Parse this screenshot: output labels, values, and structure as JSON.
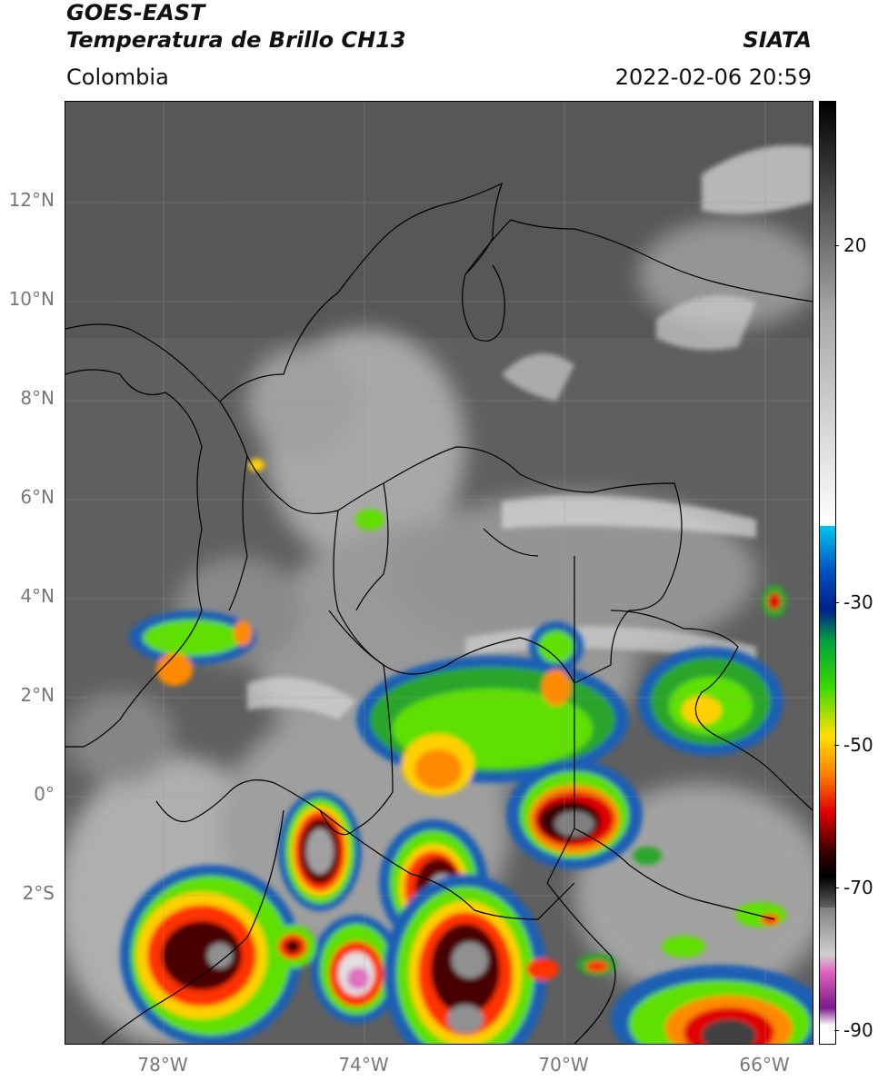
{
  "header": {
    "line1": "GOES-EAST",
    "line2": "Temperatura de Brillo CH13",
    "region": "Colombia",
    "agency": "SIATA",
    "datetime": "2022-02-06 20:59"
  },
  "map": {
    "lat_ticks": [
      "12°N",
      "10°N",
      "8°N",
      "6°N",
      "4°N",
      "2°N",
      "0°",
      "2°S"
    ],
    "lon_ticks": [
      "78°W",
      "74°W",
      "70°W",
      "66°W"
    ],
    "gridlines": true
  },
  "colorbar": {
    "ticks": [
      "20",
      "-30",
      "-50",
      "-70",
      "-90"
    ],
    "stops": [
      {
        "color": "#000000",
        "label": ""
      },
      {
        "color": "#c8c8c8",
        "label": ""
      },
      {
        "color": "#ffffff",
        "label": ""
      },
      {
        "color": "#00c8f0",
        "label": ""
      },
      {
        "color": "#0050c0",
        "label": ""
      },
      {
        "color": "#00a040",
        "label": ""
      },
      {
        "color": "#38d800",
        "label": ""
      },
      {
        "color": "#ffe000",
        "label": ""
      },
      {
        "color": "#ff8000",
        "label": ""
      },
      {
        "color": "#e00000",
        "label": ""
      },
      {
        "color": "#300000",
        "label": ""
      },
      {
        "color": "#404040",
        "label": ""
      },
      {
        "color": "#c0c0c0",
        "label": ""
      },
      {
        "color": "#e060c0",
        "label": ""
      },
      {
        "color": "#7a1a8a",
        "label": ""
      },
      {
        "color": "#ffffff",
        "label": ""
      }
    ]
  }
}
